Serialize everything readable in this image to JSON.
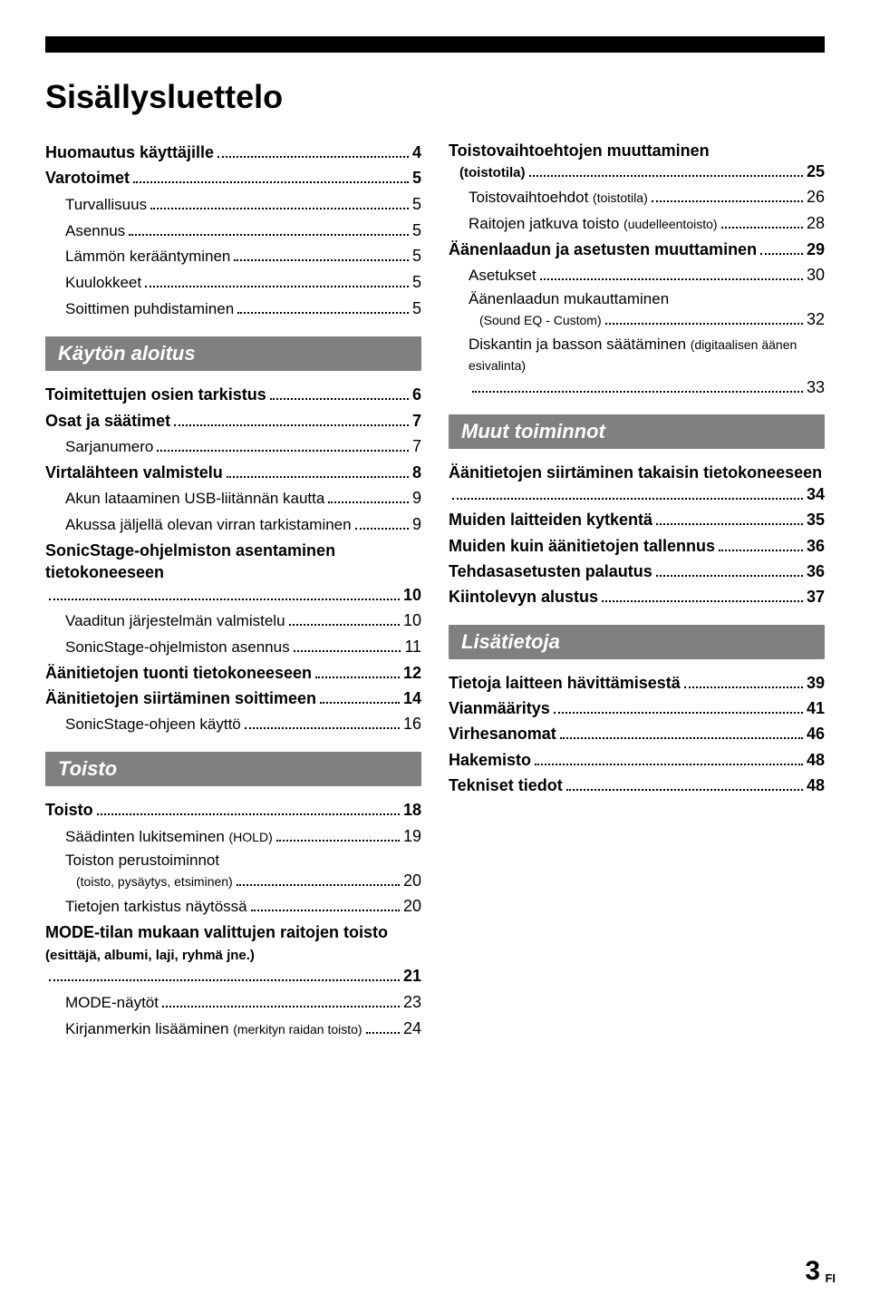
{
  "page_title": "Sisällysluettelo",
  "footer": {
    "page": "3",
    "lang": "FI"
  },
  "colors": {
    "bg": "#ffffff",
    "text": "#000000",
    "section_bg": "#808080",
    "section_fg": "#ffffff"
  },
  "typography": {
    "title_size": 36,
    "bold_size": 18,
    "norm_size": 17,
    "paren_size": 14,
    "section_size": 22
  },
  "left": [
    {
      "t": "bold",
      "label": "Huomautus käyttäjille",
      "pg": "4"
    },
    {
      "t": "bold",
      "label": "Varotoimet",
      "pg": "5"
    },
    {
      "t": "sub",
      "label": "Turvallisuus",
      "pg": "5"
    },
    {
      "t": "sub",
      "label": "Asennus",
      "pg": "5"
    },
    {
      "t": "sub",
      "label": "Lämmön kerääntyminen",
      "pg": "5"
    },
    {
      "t": "sub",
      "label": "Kuulokkeet",
      "pg": "5"
    },
    {
      "t": "sub",
      "label": "Soittimen puhdistaminen",
      "pg": "5"
    },
    {
      "t": "section",
      "label": "Käytön aloitus"
    },
    {
      "t": "bold",
      "label": "Toimitettujen osien tarkistus",
      "pg": "6"
    },
    {
      "t": "bold",
      "label": "Osat ja säätimet",
      "pg": "7"
    },
    {
      "t": "sub",
      "label": "Sarjanumero",
      "pg": "7"
    },
    {
      "t": "bold",
      "label": "Virtalähteen valmistelu",
      "pg": "8"
    },
    {
      "t": "sub",
      "label": "Akun lataaminen USB-liitännän kautta",
      "pg": "9"
    },
    {
      "t": "sub",
      "label": "Akussa jäljellä olevan virran tarkistaminen",
      "pg": "9"
    },
    {
      "t": "bold",
      "label": "SonicStage-ohjelmiston asentaminen tietokoneeseen",
      "pg": "10"
    },
    {
      "t": "sub",
      "label": "Vaaditun järjestelmän valmistelu",
      "pg": "10"
    },
    {
      "t": "sub",
      "label": "SonicStage-ohjelmiston asennus",
      "pg": "11"
    },
    {
      "t": "bold",
      "label": "Äänitietojen tuonti tietokoneeseen",
      "pg": "12"
    },
    {
      "t": "bold",
      "label": "Äänitietojen siirtäminen soittimeen",
      "pg": "14"
    },
    {
      "t": "sub",
      "label": "SonicStage-ohjeen käyttö",
      "pg": "16"
    },
    {
      "t": "section",
      "label": "Toisto"
    },
    {
      "t": "bold",
      "label": "Toisto",
      "pg": "18"
    },
    {
      "t": "sub",
      "label": "Säädinten lukitseminen ",
      "paren": "(HOLD)",
      "pg": "19"
    },
    {
      "t": "sub",
      "label": "Toiston perustoiminnot",
      "line2": "(toisto, pysäytys, etsiminen)",
      "pg": "20"
    },
    {
      "t": "sub",
      "label": "Tietojen tarkistus näytössä",
      "pg": "20"
    },
    {
      "t": "bold",
      "label": "MODE-tilan mukaan valittujen raitojen toisto ",
      "paren": "(esittäjä, albumi, laji, ryhmä jne.)",
      "pg": "21"
    },
    {
      "t": "sub",
      "label": "MODE-näytöt",
      "pg": "23"
    },
    {
      "t": "sub",
      "label": "Kirjanmerkin lisääminen ",
      "paren": "(merkityn raidan toisto)",
      "pg": "24"
    }
  ],
  "right": [
    {
      "t": "bold",
      "label": "Toistovaihtoehtojen muuttaminen",
      "line2": "(toistotila)",
      "pg": "25"
    },
    {
      "t": "sub",
      "label": "Toistovaihtoehdot ",
      "paren": "(toistotila)",
      "pg": "26"
    },
    {
      "t": "sub",
      "label": "Raitojen jatkuva toisto ",
      "paren": "(uudelleentoisto)",
      "pg": "28"
    },
    {
      "t": "bold",
      "label": "Äänenlaadun ja asetusten muuttaminen",
      "pg": "29"
    },
    {
      "t": "sub",
      "label": "Asetukset",
      "pg": "30"
    },
    {
      "t": "sub",
      "label": "Äänenlaadun mukauttaminen",
      "line2": "(Sound EQ - Custom)",
      "pg": "32"
    },
    {
      "t": "sub",
      "label": "Diskantin ja basson säätäminen ",
      "paren": "(digitaalisen äänen esivalinta)",
      "pg": "33"
    },
    {
      "t": "section",
      "label": "Muut toiminnot"
    },
    {
      "t": "bold",
      "label": "Äänitietojen siirtäminen takaisin tietokoneeseen",
      "pg": "34"
    },
    {
      "t": "bold",
      "label": "Muiden laitteiden kytkentä",
      "pg": "35"
    },
    {
      "t": "bold",
      "label": "Muiden kuin äänitietojen tallennus",
      "pg": "36"
    },
    {
      "t": "bold",
      "label": "Tehdasasetusten palautus",
      "pg": "36"
    },
    {
      "t": "bold",
      "label": "Kiintolevyn alustus",
      "pg": "37"
    },
    {
      "t": "section",
      "label": "Lisätietoja"
    },
    {
      "t": "bold",
      "label": "Tietoja laitteen hävittämisestä",
      "pg": "39"
    },
    {
      "t": "bold",
      "label": "Vianmääritys",
      "pg": "41"
    },
    {
      "t": "bold",
      "label": "Virhesanomat",
      "pg": "46"
    },
    {
      "t": "bold",
      "label": "Hakemisto",
      "pg": "48"
    },
    {
      "t": "bold",
      "label": "Tekniset tiedot",
      "pg": "48"
    }
  ]
}
